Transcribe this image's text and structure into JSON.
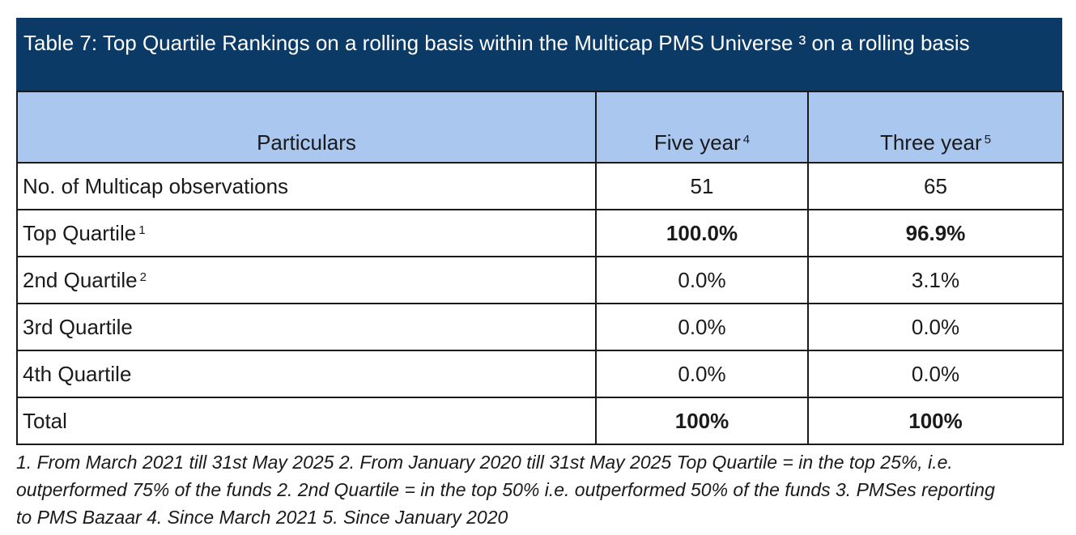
{
  "title": "Table 7: Top Quartile Rankings on a rolling basis within the Multicap PMS Universe ³ on a rolling basis",
  "table": {
    "headers": [
      {
        "label": "Particulars",
        "sup": ""
      },
      {
        "label": "Five year",
        "sup": "4"
      },
      {
        "label": "Three year",
        "sup": "5"
      }
    ],
    "rows": [
      {
        "label": "No. of Multicap observations",
        "sup": "",
        "five": "51",
        "three": "65",
        "bold": false
      },
      {
        "label": "Top Quartile",
        "sup": "1",
        "five": "100.0%",
        "three": "96.9%",
        "bold": true
      },
      {
        "label": "2nd Quartile",
        "sup": "2",
        "five": "0.0%",
        "three": "3.1%",
        "bold": false
      },
      {
        "label": "3rd Quartile",
        "sup": "",
        "five": "0.0%",
        "three": "0.0%",
        "bold": false
      },
      {
        "label": "4th Quartile",
        "sup": "",
        "five": "0.0%",
        "three": "0.0%",
        "bold": false
      },
      {
        "label": "Total",
        "sup": "",
        "five": "100%",
        "three": "100%",
        "bold": true
      }
    ]
  },
  "footnote": "1. From March 2021 till 31st May 2025 2. From January 2020 till 31st May 2025 Top Quartile = in the top 25%, i.e. outperformed 75% of the funds 2. 2nd Quartile = in the top 50% i.e. outperformed 50% of the funds 3. PMSes reporting to PMS Bazaar 4. Since March 2021 5. Since January 2020",
  "colors": {
    "title_bg": "#0b3a66",
    "header_bg": "#a9c7ef"
  }
}
